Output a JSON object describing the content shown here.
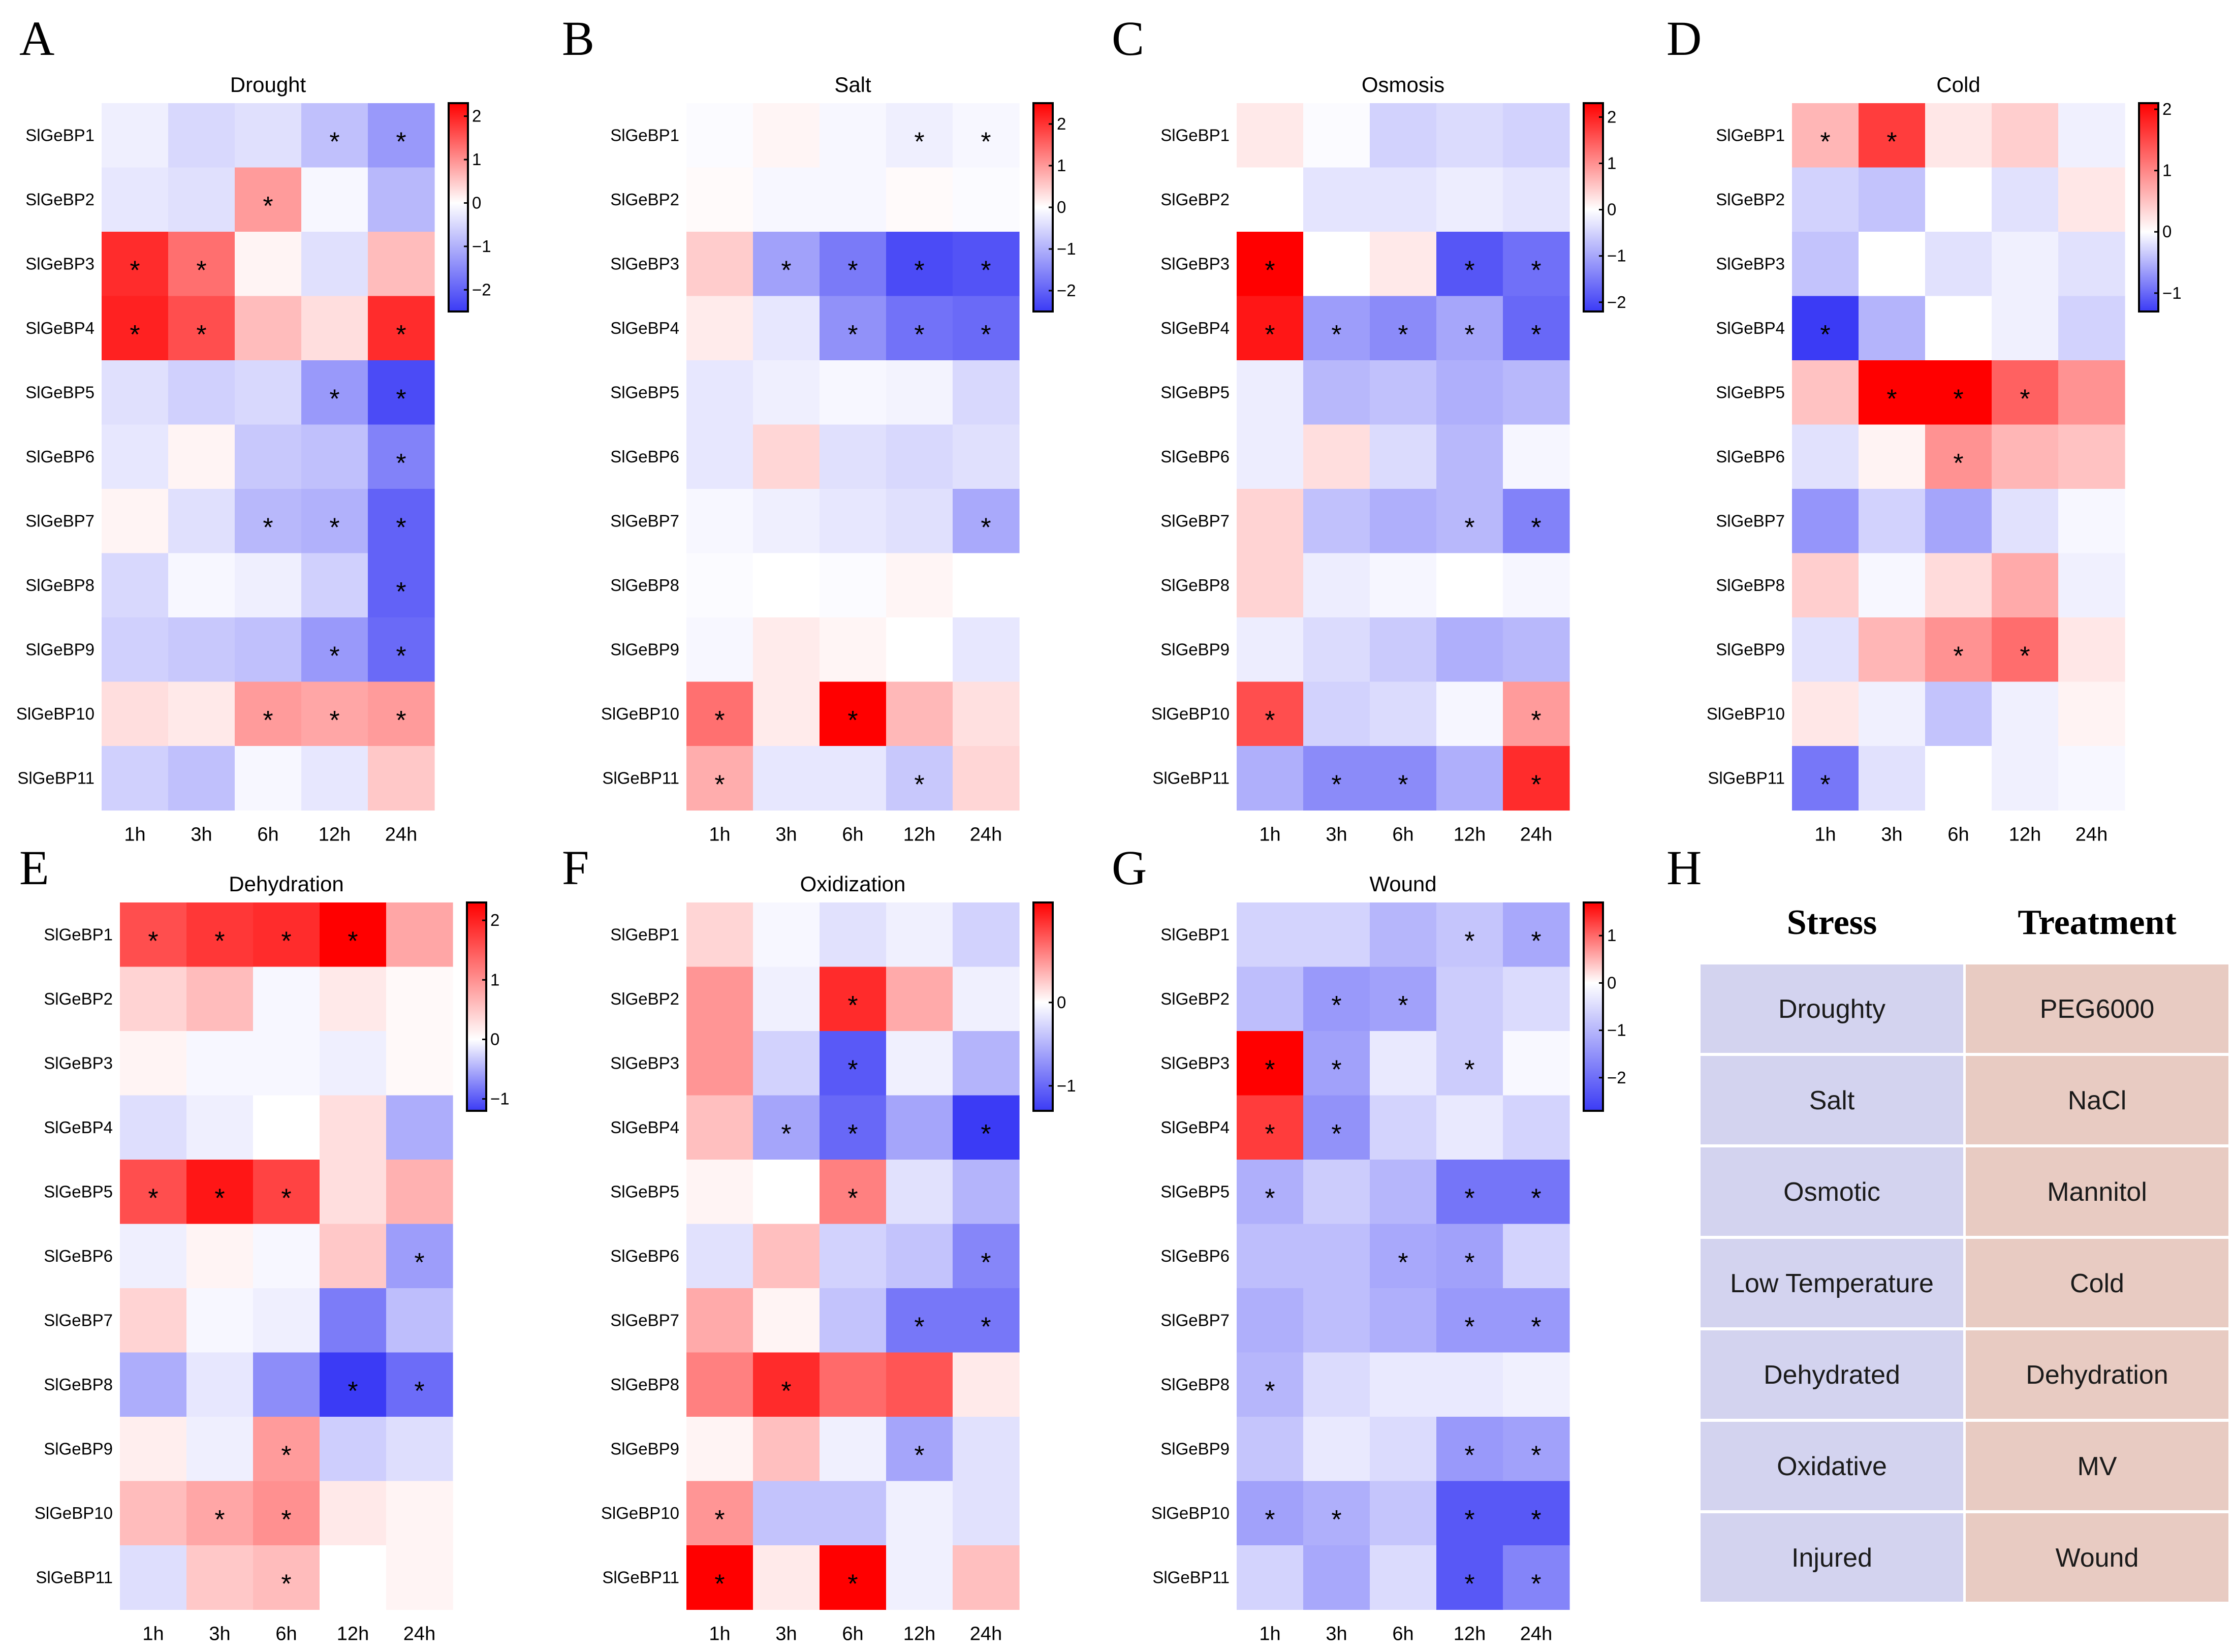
{
  "colors": {
    "low": "#3b3bf5",
    "mid": "#ffffff",
    "high": "#ff0000",
    "stress_cell": "#d3d3ef",
    "treatment_cell": "#e8cbc2"
  },
  "chart_data": [
    {
      "type": "heatmap",
      "panel": "A",
      "title": "Drought",
      "rows": [
        "SlGeBP1",
        "SlGeBP2",
        "SlGeBP3",
        "SlGeBP4",
        "SlGeBP5",
        "SlGeBP6",
        "SlGeBP7",
        "SlGeBP8",
        "SlGeBP9",
        "SlGeBP10",
        "SlGeBP11"
      ],
      "cols": [
        "1h",
        "3h",
        "6h",
        "12h",
        "24h"
      ],
      "vmin": -2.5,
      "vmax": 2.3,
      "colorbar_ticks": [
        2,
        1,
        0,
        -1,
        -2
      ],
      "values": [
        [
          -0.2,
          -0.5,
          -0.4,
          -0.8,
          -1.3
        ],
        [
          -0.3,
          -0.4,
          0.9,
          -0.1,
          -0.9
        ],
        [
          1.9,
          1.3,
          0.1,
          -0.4,
          0.6
        ],
        [
          2.0,
          1.6,
          0.6,
          0.3,
          1.9
        ],
        [
          -0.4,
          -0.6,
          -0.5,
          -1.3,
          -2.3
        ],
        [
          -0.3,
          0.1,
          -0.7,
          -0.8,
          -1.6
        ],
        [
          0.1,
          -0.4,
          -0.9,
          -1.0,
          -2.0
        ],
        [
          -0.5,
          -0.1,
          -0.2,
          -0.6,
          -2.0
        ],
        [
          -0.6,
          -0.7,
          -0.8,
          -1.3,
          -1.9
        ],
        [
          0.3,
          0.2,
          0.9,
          0.8,
          0.9
        ],
        [
          -0.6,
          -0.8,
          -0.1,
          -0.3,
          0.5
        ]
      ],
      "significant": [
        [
          0,
          0,
          0,
          1,
          1
        ],
        [
          0,
          0,
          1,
          0,
          0
        ],
        [
          1,
          1,
          0,
          0,
          0
        ],
        [
          1,
          1,
          0,
          0,
          1
        ],
        [
          0,
          0,
          0,
          1,
          1
        ],
        [
          0,
          0,
          0,
          0,
          1
        ],
        [
          0,
          0,
          1,
          1,
          1
        ],
        [
          0,
          0,
          0,
          0,
          1
        ],
        [
          0,
          0,
          0,
          1,
          1
        ],
        [
          0,
          0,
          1,
          1,
          1
        ],
        [
          0,
          0,
          0,
          0,
          0
        ]
      ]
    },
    {
      "type": "heatmap",
      "panel": "B",
      "title": "Salt",
      "rows": [
        "SlGeBP1",
        "SlGeBP2",
        "SlGeBP3",
        "SlGeBP4",
        "SlGeBP5",
        "SlGeBP6",
        "SlGeBP7",
        "SlGeBP8",
        "SlGeBP9",
        "SlGeBP10",
        "SlGeBP11"
      ],
      "cols": [
        "1h",
        "3h",
        "6h",
        "12h",
        "24h"
      ],
      "vmin": -2.5,
      "vmax": 2.5,
      "colorbar_ticks": [
        2,
        1,
        0,
        -1,
        -2
      ],
      "values": [
        [
          -0.05,
          0.1,
          -0.1,
          -0.2,
          -0.1
        ],
        [
          0.05,
          -0.1,
          -0.1,
          0.05,
          -0.05
        ],
        [
          0.5,
          -1.2,
          -1.7,
          -2.3,
          -2.2
        ],
        [
          0.2,
          -0.3,
          -1.4,
          -1.8,
          -1.9
        ],
        [
          -0.3,
          -0.2,
          -0.1,
          -0.15,
          -0.5
        ],
        [
          -0.3,
          0.4,
          -0.4,
          -0.5,
          -0.4
        ],
        [
          -0.1,
          -0.2,
          -0.3,
          -0.4,
          -1.1
        ],
        [
          -0.05,
          0.0,
          -0.05,
          0.1,
          0.0
        ],
        [
          -0.1,
          0.2,
          0.1,
          0.0,
          -0.3
        ],
        [
          1.4,
          0.2,
          2.5,
          0.7,
          0.3
        ],
        [
          0.8,
          -0.3,
          -0.3,
          -0.7,
          0.4
        ]
      ],
      "significant": [
        [
          0,
          0,
          0,
          1,
          1
        ],
        [
          0,
          0,
          0,
          0,
          0
        ],
        [
          0,
          1,
          1,
          1,
          1
        ],
        [
          0,
          0,
          1,
          1,
          1
        ],
        [
          0,
          0,
          0,
          0,
          0
        ],
        [
          0,
          0,
          0,
          0,
          0
        ],
        [
          0,
          0,
          0,
          0,
          1
        ],
        [
          0,
          0,
          0,
          0,
          0
        ],
        [
          0,
          0,
          0,
          0,
          0
        ],
        [
          1,
          0,
          1,
          0,
          0
        ],
        [
          1,
          0,
          0,
          1,
          0
        ]
      ]
    },
    {
      "type": "heatmap",
      "panel": "C",
      "title": "Osmosis",
      "rows": [
        "SlGeBP1",
        "SlGeBP2",
        "SlGeBP3",
        "SlGeBP4",
        "SlGeBP5",
        "SlGeBP6",
        "SlGeBP7",
        "SlGeBP8",
        "SlGeBP9",
        "SlGeBP10",
        "SlGeBP11"
      ],
      "cols": [
        "1h",
        "3h",
        "6h",
        "12h",
        "24h"
      ],
      "vmin": -2.2,
      "vmax": 2.3,
      "colorbar_ticks": [
        2,
        1,
        0,
        -1,
        -2
      ],
      "values": [
        [
          0.2,
          -0.05,
          -0.5,
          -0.4,
          -0.5
        ],
        [
          0.0,
          -0.3,
          -0.3,
          -0.2,
          -0.3
        ],
        [
          2.3,
          0.0,
          0.2,
          -1.9,
          -1.6
        ],
        [
          2.1,
          -1.1,
          -1.3,
          -1.0,
          -1.7
        ],
        [
          -0.2,
          -0.8,
          -0.7,
          -0.9,
          -0.8
        ],
        [
          -0.2,
          0.3,
          -0.4,
          -0.8,
          -0.1
        ],
        [
          0.4,
          -0.7,
          -0.9,
          -0.8,
          -1.4
        ],
        [
          0.4,
          -0.2,
          -0.1,
          0.0,
          -0.1
        ],
        [
          -0.2,
          -0.4,
          -0.6,
          -0.9,
          -0.8
        ],
        [
          1.6,
          -0.5,
          -0.4,
          -0.1,
          0.9
        ],
        [
          -0.9,
          -1.3,
          -1.3,
          -0.9,
          1.9
        ]
      ],
      "significant": [
        [
          0,
          0,
          0,
          0,
          0
        ],
        [
          0,
          0,
          0,
          0,
          0
        ],
        [
          1,
          0,
          0,
          1,
          1
        ],
        [
          1,
          1,
          1,
          1,
          1
        ],
        [
          0,
          0,
          0,
          0,
          0
        ],
        [
          0,
          0,
          0,
          0,
          0
        ],
        [
          0,
          0,
          0,
          1,
          1
        ],
        [
          0,
          0,
          0,
          0,
          0
        ],
        [
          0,
          0,
          0,
          0,
          0
        ],
        [
          1,
          0,
          0,
          0,
          1
        ],
        [
          0,
          1,
          1,
          0,
          1
        ]
      ]
    },
    {
      "type": "heatmap",
      "panel": "D",
      "title": "Cold",
      "rows": [
        "SlGeBP1",
        "SlGeBP2",
        "SlGeBP3",
        "SlGeBP4",
        "SlGeBP5",
        "SlGeBP6",
        "SlGeBP7",
        "SlGeBP8",
        "SlGeBP9",
        "SlGeBP10",
        "SlGeBP11"
      ],
      "cols": [
        "1h",
        "3h",
        "6h",
        "12h",
        "24h"
      ],
      "vmin": -1.3,
      "vmax": 2.1,
      "colorbar_ticks": [
        2,
        1,
        0,
        -1
      ],
      "values": [
        [
          0.6,
          1.6,
          0.2,
          0.4,
          -0.1
        ],
        [
          -0.3,
          -0.4,
          0.0,
          -0.2,
          0.2
        ],
        [
          -0.4,
          0.0,
          -0.2,
          -0.1,
          -0.2
        ],
        [
          -1.3,
          -0.5,
          0.0,
          -0.1,
          -0.3
        ],
        [
          0.5,
          2.1,
          2.1,
          1.3,
          0.9
        ],
        [
          -0.2,
          0.1,
          0.9,
          0.6,
          0.5
        ],
        [
          -0.7,
          -0.3,
          -0.6,
          -0.2,
          -0.05
        ],
        [
          0.4,
          -0.05,
          0.3,
          0.7,
          -0.1
        ],
        [
          -0.2,
          0.6,
          0.9,
          1.2,
          0.2
        ],
        [
          0.2,
          -0.1,
          -0.4,
          -0.1,
          0.1
        ],
        [
          -0.9,
          -0.2,
          0.0,
          -0.1,
          -0.05
        ]
      ],
      "significant": [
        [
          1,
          1,
          0,
          0,
          0
        ],
        [
          0,
          0,
          0,
          0,
          0
        ],
        [
          0,
          0,
          0,
          0,
          0
        ],
        [
          1,
          0,
          0,
          0,
          0
        ],
        [
          0,
          1,
          1,
          1,
          0
        ],
        [
          0,
          0,
          1,
          0,
          0
        ],
        [
          0,
          0,
          0,
          0,
          0
        ],
        [
          0,
          0,
          0,
          0,
          0
        ],
        [
          0,
          0,
          1,
          1,
          0
        ],
        [
          0,
          0,
          0,
          0,
          0
        ],
        [
          1,
          0,
          0,
          0,
          0
        ]
      ]
    },
    {
      "type": "heatmap",
      "panel": "E",
      "title": "Dehydration",
      "rows": [
        "SlGeBP1",
        "SlGeBP2",
        "SlGeBP3",
        "SlGeBP4",
        "SlGeBP5",
        "SlGeBP6",
        "SlGeBP7",
        "SlGeBP8",
        "SlGeBP9",
        "SlGeBP10",
        "SlGeBP11"
      ],
      "cols": [
        "1h",
        "3h",
        "6h",
        "12h",
        "24h"
      ],
      "vmin": -1.2,
      "vmax": 2.3,
      "colorbar_ticks": [
        2,
        1,
        0,
        -1
      ],
      "values": [
        [
          1.6,
          1.8,
          1.9,
          2.3,
          0.8
        ],
        [
          0.4,
          0.6,
          -0.05,
          0.2,
          0.05
        ],
        [
          0.1,
          -0.05,
          -0.05,
          -0.1,
          0.05
        ],
        [
          -0.2,
          -0.1,
          0.0,
          0.3,
          -0.5
        ],
        [
          1.6,
          2.1,
          1.7,
          0.3,
          0.7
        ],
        [
          -0.1,
          0.1,
          -0.05,
          0.5,
          -0.6
        ],
        [
          0.4,
          -0.05,
          -0.1,
          -0.8,
          -0.4
        ],
        [
          -0.5,
          -0.15,
          -0.7,
          -1.2,
          -0.9
        ],
        [
          0.15,
          -0.1,
          0.9,
          -0.3,
          -0.2
        ],
        [
          0.6,
          0.8,
          1.0,
          0.2,
          0.1
        ],
        [
          -0.2,
          0.5,
          0.6,
          0.0,
          0.1
        ]
      ],
      "significant": [
        [
          1,
          1,
          1,
          1,
          0
        ],
        [
          0,
          0,
          0,
          0,
          0
        ],
        [
          0,
          0,
          0,
          0,
          0
        ],
        [
          0,
          0,
          0,
          0,
          0
        ],
        [
          1,
          1,
          1,
          0,
          0
        ],
        [
          0,
          0,
          0,
          0,
          1
        ],
        [
          0,
          0,
          0,
          0,
          0
        ],
        [
          0,
          0,
          0,
          1,
          1
        ],
        [
          0,
          0,
          1,
          0,
          0
        ],
        [
          0,
          1,
          1,
          0,
          0
        ],
        [
          0,
          0,
          1,
          0,
          0
        ]
      ]
    },
    {
      "type": "heatmap",
      "panel": "F",
      "title": "Oxidization",
      "rows": [
        "SlGeBP1",
        "SlGeBP2",
        "SlGeBP3",
        "SlGeBP4",
        "SlGeBP5",
        "SlGeBP6",
        "SlGeBP7",
        "SlGeBP8",
        "SlGeBP9",
        "SlGeBP10",
        "SlGeBP11"
      ],
      "cols": [
        "1h",
        "3h",
        "6h",
        "12h",
        "24h"
      ],
      "vmin": -1.3,
      "vmax": 1.2,
      "colorbar_ticks": [
        0,
        -1
      ],
      "values": [
        [
          0.2,
          -0.05,
          -0.2,
          -0.1,
          -0.3
        ],
        [
          0.5,
          -0.1,
          1.0,
          0.4,
          -0.1
        ],
        [
          0.5,
          -0.3,
          -1.1,
          -0.1,
          -0.5
        ],
        [
          0.3,
          -0.6,
          -1.0,
          -0.6,
          -1.3
        ],
        [
          0.05,
          0.0,
          0.6,
          -0.2,
          -0.5
        ],
        [
          -0.2,
          0.3,
          -0.3,
          -0.4,
          -0.8
        ],
        [
          0.4,
          0.05,
          -0.4,
          -0.9,
          -0.9
        ],
        [
          0.6,
          1.0,
          0.7,
          0.8,
          0.1
        ],
        [
          0.05,
          0.3,
          -0.1,
          -0.6,
          -0.2
        ],
        [
          0.5,
          -0.4,
          -0.4,
          -0.1,
          -0.2
        ],
        [
          1.2,
          0.1,
          1.2,
          -0.1,
          0.3
        ]
      ],
      "significant": [
        [
          0,
          0,
          0,
          0,
          0
        ],
        [
          0,
          0,
          1,
          0,
          0
        ],
        [
          0,
          0,
          1,
          0,
          0
        ],
        [
          0,
          1,
          1,
          0,
          1
        ],
        [
          0,
          0,
          1,
          0,
          0
        ],
        [
          0,
          0,
          0,
          0,
          1
        ],
        [
          0,
          0,
          0,
          1,
          1
        ],
        [
          0,
          1,
          0,
          0,
          0
        ],
        [
          0,
          0,
          0,
          1,
          0
        ],
        [
          1,
          0,
          0,
          0,
          0
        ],
        [
          1,
          0,
          1,
          0,
          0
        ]
      ]
    },
    {
      "type": "heatmap",
      "panel": "G",
      "title": "Wound",
      "rows": [
        "SlGeBP1",
        "SlGeBP2",
        "SlGeBP3",
        "SlGeBP4",
        "SlGeBP5",
        "SlGeBP6",
        "SlGeBP7",
        "SlGeBP8",
        "SlGeBP9",
        "SlGeBP10",
        "SlGeBP11"
      ],
      "cols": [
        "1h",
        "3h",
        "6h",
        "12h",
        "24h"
      ],
      "vmin": -2.7,
      "vmax": 1.7,
      "colorbar_ticks": [
        1,
        0,
        -1,
        -2
      ],
      "values": [
        [
          -0.6,
          -0.6,
          -1.0,
          -0.8,
          -1.2
        ],
        [
          -0.9,
          -1.4,
          -1.3,
          -0.7,
          -0.5
        ],
        [
          1.7,
          -1.3,
          -0.3,
          -0.7,
          -0.1
        ],
        [
          1.3,
          -1.5,
          -0.6,
          -0.3,
          -0.6
        ],
        [
          -1.1,
          -0.7,
          -1.0,
          -1.9,
          -1.9
        ],
        [
          -0.9,
          -0.9,
          -1.2,
          -1.3,
          -0.6
        ],
        [
          -1.1,
          -0.9,
          -1.1,
          -1.4,
          -1.4
        ],
        [
          -1.0,
          -0.5,
          -0.3,
          -0.3,
          -0.2
        ],
        [
          -0.8,
          -0.3,
          -0.5,
          -1.4,
          -1.3
        ],
        [
          -1.3,
          -1.1,
          -0.8,
          -2.3,
          -2.3
        ],
        [
          -0.6,
          -1.2,
          -0.5,
          -2.3,
          -1.7
        ]
      ],
      "significant": [
        [
          0,
          0,
          0,
          1,
          1
        ],
        [
          0,
          1,
          1,
          0,
          0
        ],
        [
          1,
          1,
          0,
          1,
          0
        ],
        [
          1,
          1,
          0,
          0,
          0
        ],
        [
          1,
          0,
          0,
          1,
          1
        ],
        [
          0,
          0,
          1,
          1,
          0
        ],
        [
          0,
          0,
          0,
          1,
          1
        ],
        [
          1,
          0,
          0,
          0,
          0
        ],
        [
          0,
          0,
          0,
          1,
          1
        ],
        [
          1,
          1,
          0,
          1,
          1
        ],
        [
          0,
          0,
          0,
          1,
          1
        ]
      ]
    }
  ],
  "table": {
    "panel": "H",
    "headers": [
      "Stress",
      "Treatment"
    ],
    "rows": [
      [
        "Droughty",
        "PEG6000"
      ],
      [
        "Salt",
        "NaCl"
      ],
      [
        "Osmotic",
        "Mannitol"
      ],
      [
        "Low Temperature",
        "Cold"
      ],
      [
        "Dehydrated",
        "Dehydration"
      ],
      [
        "Oxidative",
        "MV"
      ],
      [
        "Injured",
        "Wound"
      ]
    ]
  },
  "significance_marker": "*"
}
